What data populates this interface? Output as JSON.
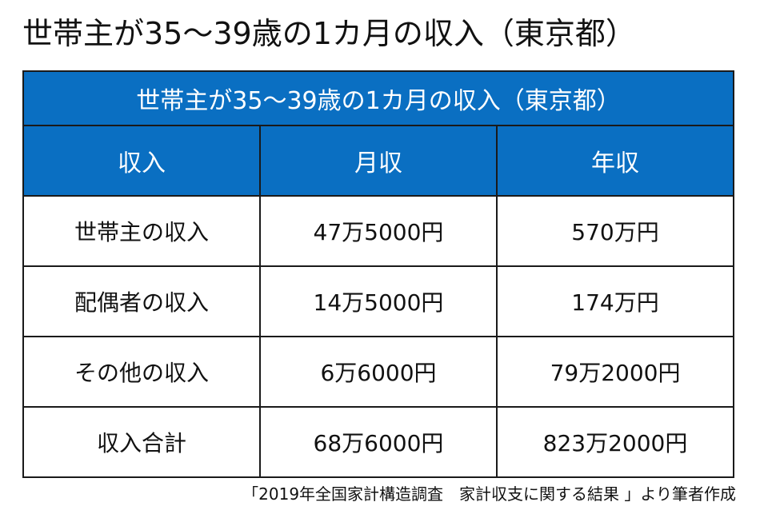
{
  "page_title": "世帯主が35～39歳の1カ月の収入（東京都）",
  "table": {
    "caption": "世帯主が35～39歳の1カ月の収入（東京都）",
    "columns": [
      "収入",
      "月収",
      "年収"
    ],
    "rows": [
      [
        "世帯主の収入",
        "47万5000円",
        "570万円"
      ],
      [
        "配偶者の収入",
        "14万5000円",
        "174万円"
      ],
      [
        "その他の収入",
        "6万6000円",
        "79万2000円"
      ],
      [
        "収入合計",
        "68万6000円",
        "823万2000円"
      ]
    ]
  },
  "source_note": "「2019年全国家計構造調査　家計収支に関する結果 」より筆者作成",
  "colors": {
    "header_blue": "#0a6fc2",
    "border": "#1a1a1a"
  }
}
